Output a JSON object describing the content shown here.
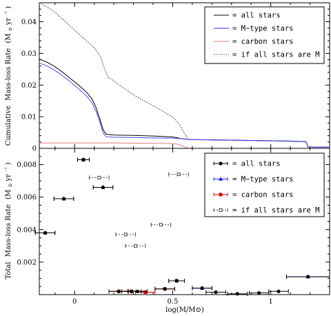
{
  "colors": {
    "all": "#000000",
    "mtype": "#2626ff",
    "carbon": "#e00000",
    "ifm": "#444444"
  },
  "chart_data": [
    {
      "type": "line",
      "ylabel_parts": [
        "Cumulative",
        "Mass-loss Rate",
        "(M",
        "⊙",
        " yr",
        "⁻¹",
        ")"
      ],
      "xlim": [
        -0.18,
        1.3
      ],
      "ylim": [
        0,
        0.046
      ],
      "yticks": [
        0,
        0.01,
        0.02,
        0.03,
        0.04
      ],
      "ytick_labels": [
        "0",
        "0.01",
        "0.02",
        "0.03",
        "0.04"
      ],
      "legend": [
        {
          "key": "all",
          "label": "= all stars"
        },
        {
          "key": "mtype",
          "label": "= M−type stars"
        },
        {
          "key": "carbon",
          "label": "= carbon stars"
        },
        {
          "key": "ifm",
          "label": "= if all stars are M"
        }
      ],
      "series": [
        {
          "key": "ifm",
          "style": "dotted",
          "points": [
            [
              -0.18,
              0.046
            ],
            [
              -0.14,
              0.0447
            ],
            [
              -0.1,
              0.043
            ],
            [
              -0.06,
              0.0408
            ],
            [
              -0.02,
              0.0385
            ],
            [
              0.02,
              0.0362
            ],
            [
              0.06,
              0.034
            ],
            [
              0.1,
              0.0318
            ],
            [
              0.13,
              0.0292
            ],
            [
              0.15,
              0.0255
            ],
            [
              0.17,
              0.0225
            ],
            [
              0.2,
              0.0213
            ],
            [
              0.24,
              0.0195
            ],
            [
              0.28,
              0.0178
            ],
            [
              0.32,
              0.0162
            ],
            [
              0.36,
              0.0148
            ],
            [
              0.4,
              0.0135
            ],
            [
              0.44,
              0.0121
            ],
            [
              0.48,
              0.0106
            ],
            [
              0.51,
              0.0094
            ],
            [
              0.53,
              0.0078
            ],
            [
              0.55,
              0.0058
            ],
            [
              0.57,
              0.0038
            ],
            [
              0.58,
              0.0028
            ],
            [
              0.62,
              0.0027
            ],
            [
              0.8,
              0.0025
            ],
            [
              1.0,
              0.0023
            ],
            [
              1.18,
              0.0021
            ],
            [
              1.19,
              0.0004
            ],
            [
              1.3,
              0.0004
            ]
          ]
        },
        {
          "key": "all",
          "style": "solid",
          "points": [
            [
              -0.18,
              0.0282
            ],
            [
              -0.14,
              0.0272
            ],
            [
              -0.1,
              0.0258
            ],
            [
              -0.06,
              0.024
            ],
            [
              -0.02,
              0.022
            ],
            [
              0.02,
              0.02
            ],
            [
              0.06,
              0.0178
            ],
            [
              0.09,
              0.0155
            ],
            [
              0.11,
              0.0128
            ],
            [
              0.13,
              0.009
            ],
            [
              0.145,
              0.006
            ],
            [
              0.16,
              0.0045
            ],
            [
              0.2,
              0.0042
            ],
            [
              0.3,
              0.0041
            ],
            [
              0.4,
              0.0039
            ],
            [
              0.5,
              0.0036
            ],
            [
              0.55,
              0.003
            ],
            [
              0.58,
              0.0028
            ],
            [
              0.7,
              0.0027
            ],
            [
              0.9,
              0.0025
            ],
            [
              1.1,
              0.0023
            ],
            [
              1.18,
              0.0021
            ],
            [
              1.19,
              0.0004
            ],
            [
              1.3,
              0.0004
            ]
          ]
        },
        {
          "key": "mtype",
          "style": "solid",
          "points": [
            [
              -0.18,
              0.027
            ],
            [
              -0.14,
              0.026
            ],
            [
              -0.1,
              0.0246
            ],
            [
              -0.06,
              0.0229
            ],
            [
              -0.02,
              0.0209
            ],
            [
              0.02,
              0.0188
            ],
            [
              0.06,
              0.0166
            ],
            [
              0.09,
              0.0143
            ],
            [
              0.11,
              0.0116
            ],
            [
              0.13,
              0.008
            ],
            [
              0.145,
              0.005
            ],
            [
              0.16,
              0.0037
            ],
            [
              0.2,
              0.0035
            ],
            [
              0.3,
              0.0034
            ],
            [
              0.4,
              0.0033
            ],
            [
              0.5,
              0.0032
            ],
            [
              0.56,
              0.003
            ],
            [
              0.58,
              0.0028
            ],
            [
              0.7,
              0.0027
            ],
            [
              0.9,
              0.0025
            ],
            [
              1.1,
              0.0023
            ],
            [
              1.18,
              0.0021
            ],
            [
              1.19,
              0.0004
            ],
            [
              1.3,
              0.0004
            ]
          ]
        },
        {
          "key": "carbon",
          "style": "solid",
          "points": [
            [
              -0.18,
              0.0017
            ],
            [
              0.2,
              0.0017
            ],
            [
              0.45,
              0.0016
            ],
            [
              0.52,
              0.0014
            ],
            [
              0.56,
              0.0005
            ],
            [
              0.58,
              0.0
            ],
            [
              1.3,
              0.0
            ]
          ]
        }
      ]
    },
    {
      "type": "scatter",
      "xlabel": "log(M/M⊙)",
      "ylabel_parts": [
        "Total",
        "Mass-loss Rate",
        "(M",
        "⊙",
        " yr",
        "⁻¹",
        ")"
      ],
      "xlim": [
        -0.18,
        1.3
      ],
      "ylim": [
        0,
        0.009
      ],
      "xticks": [
        0,
        0.5,
        1
      ],
      "xtick_labels": [
        "0",
        "0.5",
        "1"
      ],
      "yticks": [
        0.002,
        0.004,
        0.006,
        0.008
      ],
      "ytick_labels": [
        "0.002",
        "0.004",
        "0.006",
        "0.008"
      ],
      "legend": [
        {
          "key": "all",
          "label": "= all stars"
        },
        {
          "key": "mtype",
          "label": "= M−type stars"
        },
        {
          "key": "carbon",
          "label": "= carbon stars"
        },
        {
          "key": "ifm",
          "label": "= if all stars are M"
        }
      ],
      "series": [
        {
          "key": "ifm",
          "marker": "square",
          "points": [
            [
              0.045,
              0.0083,
              0.03
            ],
            [
              0.125,
              0.0072,
              0.05
            ],
            [
              0.53,
              0.0074,
              0.05
            ],
            [
              0.44,
              0.0043,
              0.05
            ],
            [
              0.26,
              0.0037,
              0.05
            ],
            [
              0.31,
              0.003,
              0.05
            ]
          ]
        },
        {
          "key": "mtype",
          "marker": "triangle",
          "points": [
            [
              0.045,
              0.0083,
              0.03
            ],
            [
              0.145,
              0.0066,
              0.05
            ],
            [
              -0.055,
              0.0059,
              0.05
            ],
            [
              -0.15,
              0.0038,
              0.05
            ],
            [
              0.65,
              0.0004,
              0.05
            ],
            [
              1.19,
              0.0011,
              0.11
            ]
          ]
        },
        {
          "key": "carbon",
          "marker": "square",
          "points": [
            [
              0.225,
              0.0002,
              0.05
            ],
            [
              0.29,
              0.0002,
              0.05
            ],
            [
              0.36,
              0.00015,
              0.05
            ],
            [
              0.46,
              0.00035,
              0.05
            ],
            [
              0.52,
              0.00085,
              0.04
            ]
          ]
        },
        {
          "key": "all",
          "marker": "circle",
          "points": [
            [
              0.045,
              0.0083,
              0.03
            ],
            [
              0.145,
              0.0066,
              0.05
            ],
            [
              -0.055,
              0.0059,
              0.05
            ],
            [
              -0.15,
              0.0038,
              0.05
            ],
            [
              0.225,
              0.0002,
              0.05
            ],
            [
              0.29,
              0.0002,
              0.05
            ],
            [
              0.32,
              0.0002,
              0.05
            ],
            [
              0.46,
              0.00035,
              0.05
            ],
            [
              0.52,
              0.00085,
              0.04
            ],
            [
              0.65,
              0.0004,
              0.05
            ],
            [
              0.72,
              0.00015,
              0.05
            ],
            [
              0.83,
              5e-05,
              0.05
            ],
            [
              0.94,
              0.0001,
              0.05
            ],
            [
              1.04,
              0.0002,
              0.05
            ],
            [
              1.19,
              0.0011,
              0.11
            ]
          ]
        }
      ]
    }
  ]
}
